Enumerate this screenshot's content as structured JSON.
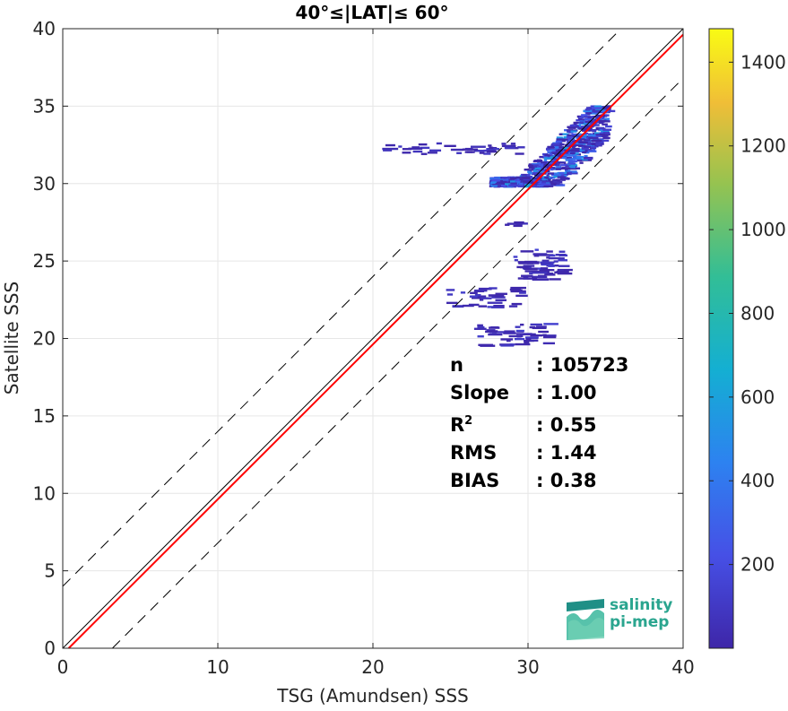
{
  "chart_data": {
    "type": "scatter",
    "subtype": "density-heatmap",
    "title": "40°≤|LAT|≤ 60°",
    "xlabel": "TSG (Amundsen) SSS",
    "ylabel": "Satellite SSS",
    "xlim": [
      0,
      40
    ],
    "ylim": [
      0,
      40
    ],
    "xticks": [
      0,
      10,
      20,
      30,
      40
    ],
    "yticks": [
      0,
      5,
      10,
      15,
      20,
      25,
      30,
      35,
      40
    ],
    "grid": true,
    "colorbar": {
      "range": [
        0,
        1480
      ],
      "ticks": [
        200,
        400,
        600,
        800,
        1000,
        1200,
        1400
      ],
      "colormap": "parula"
    },
    "reference_lines": [
      {
        "kind": "identity",
        "color": "#000000",
        "style": "solid"
      },
      {
        "kind": "regression",
        "color": "#ff0000",
        "style": "solid",
        "slope": 1.0,
        "intercept": -0.38
      },
      {
        "kind": "upper-bound",
        "color": "#000000",
        "style": "dashed",
        "offset": 4
      },
      {
        "kind": "lower-bound",
        "color": "#000000",
        "style": "dashed",
        "offset": -3.2
      }
    ],
    "stats": [
      {
        "label": "n",
        "value": ": 105723"
      },
      {
        "label": "Slope",
        "value": ": 1.00"
      },
      {
        "label": "R",
        "sup": "2",
        "value": ": 0.55"
      },
      {
        "label": "RMS",
        "value": ": 1.44"
      },
      {
        "label": "BIAS",
        "value": ": 0.38"
      }
    ],
    "density_clusters": [
      {
        "x": [
          27.5,
          35.0
        ],
        "y": [
          29.8,
          35.0
        ],
        "count": 900,
        "peak": 600
      },
      {
        "x": [
          29.0,
          32.0
        ],
        "y": [
          23.8,
          25.8
        ],
        "count": 60,
        "peak": 150
      },
      {
        "x": [
          24.5,
          29.5
        ],
        "y": [
          22.0,
          23.3
        ],
        "count": 40,
        "peak": 120
      },
      {
        "x": [
          26.5,
          31.0
        ],
        "y": [
          19.5,
          21.0
        ],
        "count": 50,
        "peak": 130
      },
      {
        "x": [
          20.5,
          29.5
        ],
        "y": [
          31.9,
          32.6
        ],
        "count": 40,
        "peak": 100
      },
      {
        "x": [
          28.5,
          29.5
        ],
        "y": [
          27.2,
          27.6
        ],
        "count": 6,
        "peak": 80
      }
    ]
  },
  "logo": {
    "line1": "salinity",
    "line2": "pi-mep"
  }
}
